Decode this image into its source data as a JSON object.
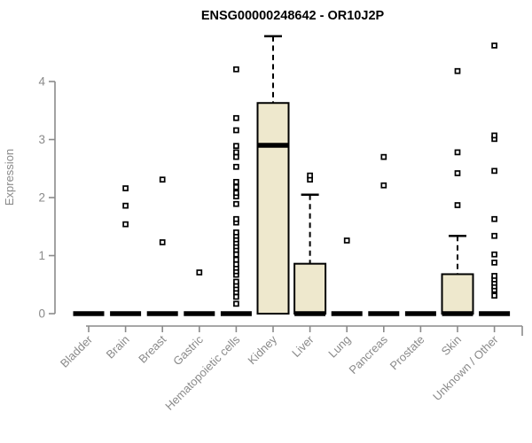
{
  "page": {
    "background": "#ffffff"
  },
  "chart_data": {
    "type": "boxplot",
    "title": "ENSG00000248642 - OR10J2P",
    "ylabel": "Expression",
    "xlabel": "",
    "yticks": [
      0,
      1,
      2,
      3,
      4
    ],
    "ylim": [
      0,
      4.9
    ],
    "grid": false,
    "legend": "none",
    "categories": [
      "Bladder",
      "Brain",
      "Breast",
      "Gastric",
      "Hematopoietic cells",
      "Kidney",
      "Liver",
      "Lung",
      "Pancreas",
      "Prostate",
      "Skin",
      "Unknown / Other"
    ],
    "series": [
      {
        "category": "Bladder",
        "q1": 0,
        "median": 0,
        "q3": 0,
        "whisker_low": 0,
        "whisker_high": 0,
        "outliers": []
      },
      {
        "category": "Brain",
        "q1": 0,
        "median": 0,
        "q3": 0,
        "whisker_low": 0,
        "whisker_high": 0,
        "outliers": [
          1.54,
          1.86,
          2.16
        ]
      },
      {
        "category": "Breast",
        "q1": 0,
        "median": 0,
        "q3": 0,
        "whisker_low": 0,
        "whisker_high": 0,
        "outliers": [
          1.23,
          2.31
        ]
      },
      {
        "category": "Gastric",
        "q1": 0,
        "median": 0,
        "q3": 0,
        "whisker_low": 0,
        "whisker_high": 0,
        "outliers": [
          0.71
        ]
      },
      {
        "category": "Hematopoietic cells",
        "q1": 0,
        "median": 0,
        "q3": 0,
        "whisker_low": 0,
        "whisker_high": 0,
        "outliers": [
          0.17,
          0.29,
          0.37,
          0.43,
          0.49,
          0.55,
          0.67,
          0.73,
          0.79,
          0.85,
          0.93,
          1.02,
          1.1,
          1.16,
          1.22,
          1.28,
          1.34,
          1.4,
          1.57,
          1.63,
          1.89,
          2.02,
          2.08,
          2.18,
          2.27,
          2.53,
          2.7,
          2.78,
          2.89,
          3.16,
          3.37,
          4.21
        ]
      },
      {
        "category": "Kidney",
        "q1": 0,
        "median": 2.9,
        "q3": 3.63,
        "whisker_low": 0,
        "whisker_high": 4.78,
        "outliers": []
      },
      {
        "category": "Liver",
        "q1": 0,
        "median": 0,
        "q3": 0.86,
        "whisker_low": 0,
        "whisker_high": 2.05,
        "outliers": [
          2.31,
          2.38
        ]
      },
      {
        "category": "Lung",
        "q1": 0,
        "median": 0,
        "q3": 0,
        "whisker_low": 0,
        "whisker_high": 0,
        "outliers": [
          1.26
        ]
      },
      {
        "category": "Pancreas",
        "q1": 0,
        "median": 0,
        "q3": 0,
        "whisker_low": 0,
        "whisker_high": 0,
        "outliers": [
          2.21,
          2.7
        ]
      },
      {
        "category": "Prostate",
        "q1": 0,
        "median": 0,
        "q3": 0,
        "whisker_low": 0,
        "whisker_high": 0,
        "outliers": []
      },
      {
        "category": "Skin",
        "q1": 0,
        "median": 0,
        "q3": 0.68,
        "whisker_low": 0,
        "whisker_high": 1.34,
        "outliers": [
          1.87,
          2.42,
          2.78,
          4.18
        ]
      },
      {
        "category": "Unknown / Other",
        "q1": 0,
        "median": 0,
        "q3": 0,
        "whisker_low": 0,
        "whisker_high": 0,
        "outliers": [
          0.31,
          0.41,
          0.47,
          0.53,
          0.59,
          0.65,
          0.88,
          1.02,
          1.34,
          1.63,
          2.46,
          3.01,
          3.07,
          4.62
        ]
      }
    ],
    "colors": {
      "box_fill": "#EEE8CD",
      "box_stroke": "#000000",
      "median": "#000000",
      "whisker": "#000000",
      "outlier_stroke": "#000000",
      "outlier_fill": "#ffffff",
      "axis": "#8a8a8a",
      "title": "#000000",
      "background": "#ffffff"
    }
  }
}
